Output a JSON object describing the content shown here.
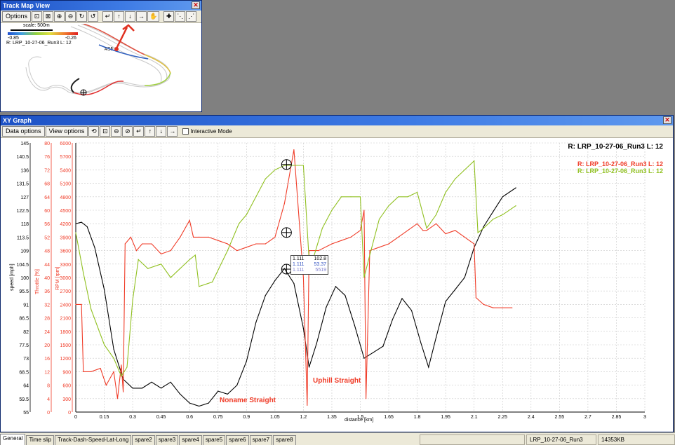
{
  "track_map": {
    "title": "Track Map View",
    "options_label": "Options",
    "scale_label": "scale: 500m",
    "color_min": "-0.85",
    "color_max": "-0.26",
    "run_label": "R: LRP_10-27-06_Run3  L: 12",
    "start_finish_label": "#SF"
  },
  "xy_graph": {
    "title": "XY Graph",
    "data_options_label": "Data options",
    "view_options_label": "View options",
    "interactive_mode_label": "Interactive Mode",
    "legend_main": "R: LRP_10-27-06_Run3  L: 12",
    "legend_series": [
      {
        "text": "R: LRP_10-27-06_Run3  L: 12",
        "color": "#f03c28"
      },
      {
        "text": "R: LRP_10-27-06_Run3  L: 12",
        "color": "#90c020"
      }
    ],
    "axis_labels": {
      "speed": "speed [mph]",
      "throttle": "Throttle [%]",
      "rpm": "RPM [rpm]",
      "distance": "distance [km]"
    },
    "annotations": {
      "noname": "Noname Straight",
      "uphill": "Uphill Straight"
    },
    "tooltip": {
      "rows": [
        {
          "x": "1.111",
          "y": "102.8",
          "color": "#000000"
        },
        {
          "x": "1.111",
          "y": "53.37",
          "color": "#3050c0"
        },
        {
          "x": "1.111",
          "y": "5519",
          "color": "#8080d0"
        }
      ]
    }
  },
  "chart_data": {
    "type": "line",
    "x_label": "distance [km]",
    "xlim": [
      0,
      3
    ],
    "x_ticks": [
      "0",
      "0.15",
      "0.3",
      "0.45",
      "0.6",
      "0.75",
      "0.9",
      "1.05",
      "1.2",
      "1.35",
      "1.5",
      "1.65",
      "1.8",
      "1.95",
      "2.1",
      "2.25",
      "2.4",
      "2.55",
      "2.7",
      "2.85",
      "3"
    ],
    "y_axes": [
      {
        "label": "speed [mph]",
        "range": [
          55,
          145
        ],
        "ticks": [
          "145",
          "140.5",
          "136",
          "131.5",
          "127",
          "122.5",
          "118",
          "113.5",
          "109",
          "104.5",
          "100",
          "95.5",
          "91",
          "86.5",
          "82",
          "77.5",
          "73",
          "68.5",
          "64",
          "59.5",
          "55"
        ]
      },
      {
        "label": "Throttle [%]",
        "range": [
          0,
          80
        ],
        "ticks": [
          "80",
          "76",
          "72",
          "68",
          "64",
          "60",
          "56",
          "52",
          "48",
          "44",
          "40",
          "36",
          "32",
          "28",
          "24",
          "20",
          "16",
          "12",
          "8",
          "4",
          "0"
        ]
      },
      {
        "label": "RPM [rpm]",
        "range": [
          0,
          6000
        ],
        "ticks": [
          "6000",
          "5700",
          "5400",
          "5100",
          "4800",
          "4500",
          "4200",
          "3900",
          "3600",
          "3300",
          "3000",
          "2700",
          "2400",
          "2100",
          "1800",
          "1500",
          "1200",
          "900",
          "600",
          "300",
          "0"
        ]
      }
    ],
    "series": [
      {
        "name": "speed",
        "color": "#000000",
        "axis": 0,
        "x": [
          0,
          0.03,
          0.06,
          0.1,
          0.15,
          0.2,
          0.25,
          0.3,
          0.35,
          0.4,
          0.45,
          0.5,
          0.55,
          0.6,
          0.65,
          0.7,
          0.75,
          0.8,
          0.85,
          0.9,
          0.95,
          1.0,
          1.05,
          1.1,
          1.15,
          1.2,
          1.23,
          1.27,
          1.32,
          1.37,
          1.42,
          1.47,
          1.52,
          1.57,
          1.62,
          1.67,
          1.72,
          1.77,
          1.82,
          1.86,
          1.9,
          1.95,
          2.0,
          2.05,
          2.1,
          2.15,
          2.2,
          2.25,
          2.32
        ],
        "y": [
          118,
          118.5,
          117,
          110,
          96,
          76,
          66,
          63,
          63,
          65,
          63,
          65,
          61,
          58,
          57,
          58,
          62,
          61,
          64,
          72,
          85,
          94,
          99,
          103,
          98,
          83,
          70,
          78,
          90,
          97,
          94,
          84,
          73,
          75,
          77,
          86,
          93,
          89,
          78,
          70,
          80,
          92,
          96,
          100,
          110,
          117,
          122,
          127,
          130
        ]
      },
      {
        "name": "throttle",
        "color": "#f03c28",
        "axis": 1,
        "x": [
          0,
          0.03,
          0.04,
          0.08,
          0.13,
          0.16,
          0.2,
          0.22,
          0.24,
          0.25,
          0.26,
          0.29,
          0.32,
          0.35,
          0.4,
          0.45,
          0.5,
          0.55,
          0.6,
          0.62,
          0.65,
          0.7,
          0.75,
          0.8,
          0.85,
          0.9,
          0.95,
          1.0,
          1.05,
          1.1,
          1.15,
          1.2,
          1.22,
          1.23,
          1.28,
          1.35,
          1.4,
          1.45,
          1.5,
          1.52,
          1.53,
          1.55,
          1.6,
          1.65,
          1.7,
          1.75,
          1.8,
          1.83,
          1.85,
          1.9,
          1.95,
          2.0,
          2.05,
          2.1,
          2.11,
          2.15,
          2.2,
          2.25,
          2.3
        ],
        "y": [
          32,
          32,
          12,
          12,
          13,
          8,
          12,
          4,
          14,
          6,
          50,
          52,
          48,
          50,
          50,
          47,
          48,
          52,
          57,
          52,
          52,
          52,
          51,
          50,
          48,
          49,
          50,
          50,
          52,
          62,
          78,
          40,
          2,
          48,
          48,
          50,
          51,
          52,
          54,
          60,
          4,
          48,
          49,
          50,
          52,
          54,
          56,
          54,
          54,
          56,
          53,
          54,
          52,
          50,
          34,
          32,
          31,
          31,
          31
        ]
      },
      {
        "name": "rpm",
        "color": "#90c020",
        "axis": 2,
        "x": [
          0,
          0.04,
          0.08,
          0.15,
          0.2,
          0.24,
          0.27,
          0.3,
          0.33,
          0.38,
          0.45,
          0.5,
          0.55,
          0.6,
          0.63,
          0.65,
          0.72,
          0.8,
          0.86,
          0.9,
          0.95,
          1.0,
          1.05,
          1.1,
          1.15,
          1.2,
          1.23,
          1.25,
          1.3,
          1.35,
          1.4,
          1.45,
          1.5,
          1.52,
          1.55,
          1.6,
          1.65,
          1.7,
          1.75,
          1.8,
          1.85,
          1.9,
          1.95,
          2.0,
          2.05,
          2.1,
          2.12,
          2.15,
          2.2,
          2.25,
          2.32
        ],
        "y": [
          4000,
          3100,
          2300,
          1500,
          1200,
          800,
          1000,
          2500,
          3400,
          3200,
          3300,
          3000,
          3200,
          3400,
          3500,
          2800,
          2900,
          3600,
          4200,
          4400,
          4800,
          5200,
          5400,
          5500,
          5500,
          5500,
          3400,
          3400,
          4100,
          4500,
          4800,
          4800,
          4800,
          3000,
          3500,
          4300,
          4600,
          4800,
          4800,
          4900,
          4100,
          4400,
          4900,
          5200,
          5400,
          5600,
          4000,
          4100,
          4300,
          4400,
          4600
        ]
      }
    ],
    "annotations": [
      "Noname Straight",
      "Uphill Straight"
    ]
  },
  "status_bar": {
    "tabs": [
      "General",
      "Time slip",
      "Track-Dash-Speed-Lat-Long",
      "spare2",
      "spare3",
      "spare4",
      "spare5",
      "spare6",
      "spare7",
      "spare8"
    ],
    "run_name": "LRP_10-27-06_Run3",
    "memory": "14353KB"
  }
}
